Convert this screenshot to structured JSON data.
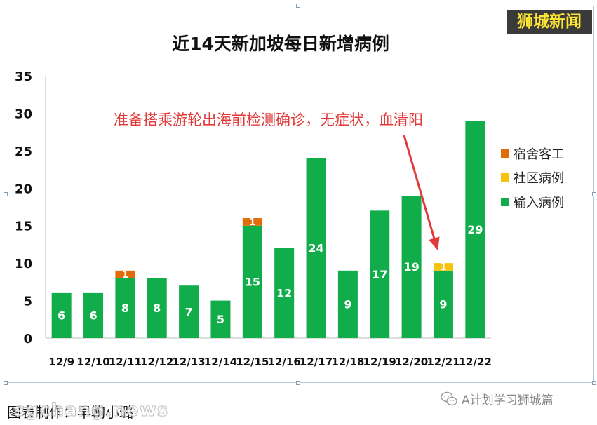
{
  "brand": "狮城新闻",
  "caption": "图表制作：早鞠小璐",
  "watermark": "sgchang.news",
  "wechat_account": "A计划学习狮城篇",
  "annotation": "准备搭乘游轮出海前检测确诊，无症状，血清阳",
  "colors": {
    "imported": "#12ad4b",
    "community": "#f7c20c",
    "dormitory": "#e36c0a",
    "annotation": "#e23a3a",
    "brand_text": "#ffe633"
  },
  "chart_data": {
    "type": "bar",
    "stacked": true,
    "title": "近14天新加坡每日新增病例",
    "categories": [
      "12/9",
      "12/10",
      "12/11",
      "12/12",
      "12/13",
      "12/14",
      "12/15",
      "12/16",
      "12/17",
      "12/18",
      "12/19",
      "12/20",
      "12/21",
      "12/22"
    ],
    "series": [
      {
        "name": "输入病例",
        "values": [
          6,
          6,
          8,
          8,
          7,
          5,
          15,
          12,
          24,
          9,
          17,
          19,
          9,
          29
        ]
      },
      {
        "name": "社区病例",
        "values": [
          0,
          0,
          0,
          0,
          0,
          0,
          0,
          0,
          0,
          0,
          0,
          0,
          1,
          0
        ]
      },
      {
        "name": "宿舍客工",
        "values": [
          0,
          0,
          1,
          0,
          0,
          0,
          1,
          0,
          0,
          0,
          0,
          0,
          0,
          0
        ]
      }
    ],
    "ylim": [
      0,
      35
    ],
    "yticks": [
      0,
      5,
      10,
      15,
      20,
      25,
      30,
      35
    ],
    "grid": false,
    "legend": "right",
    "legend_order": [
      "宿舍客工",
      "社区病例",
      "输入病例"
    ]
  }
}
